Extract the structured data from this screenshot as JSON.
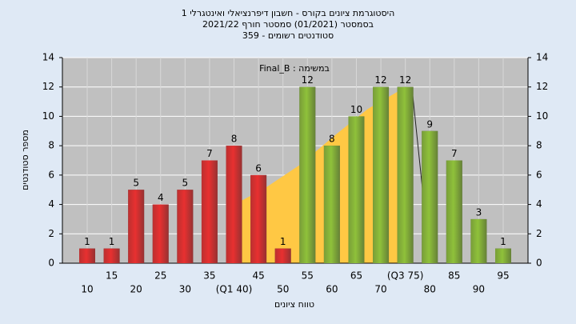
{
  "chart_data": {
    "type": "bar",
    "title": "היסטוגרמת ציונים בקורס - חשבון דיפרנציאלי ואינטגרלי 1",
    "subtitle": "בסמסטר (01/2021) סמסטר חורף 2021/22",
    "subtitle2": "סטודנטים רשומים - 359",
    "annotation": "במשימה : Final_B",
    "x_label": "טווח ציונים",
    "y_label": "מספר סטודנטים",
    "categories": [
      "10",
      "15",
      "20",
      "25",
      "30",
      "35",
      "(Q1 40)",
      "45",
      "50",
      "55",
      "60",
      "65",
      "70",
      "(Q3 75)",
      "80",
      "85",
      "90",
      "95"
    ],
    "values": [
      1,
      1,
      5,
      4,
      5,
      7,
      8,
      6,
      1,
      12,
      8,
      10,
      12,
      12,
      9,
      7,
      3,
      1
    ],
    "colors": [
      "#e83030",
      "#e83030",
      "#e83030",
      "#e83030",
      "#e83030",
      "#e83030",
      "#e83030",
      "#e83030",
      "#e83030",
      "#8fc13a",
      "#8fc13a",
      "#8fc13a",
      "#8fc13a",
      "#8fc13a",
      "#8fc13a",
      "#8fc13a",
      "#8fc13a",
      "#8fc13a"
    ],
    "ylim": [
      0,
      14
    ],
    "yticks": [
      0,
      2,
      4,
      6,
      8,
      10,
      12,
      14
    ],
    "y2lim": [
      0,
      14
    ],
    "y2ticks": [
      0,
      2,
      4,
      6,
      8,
      10,
      12,
      14
    ],
    "grid": true
  }
}
